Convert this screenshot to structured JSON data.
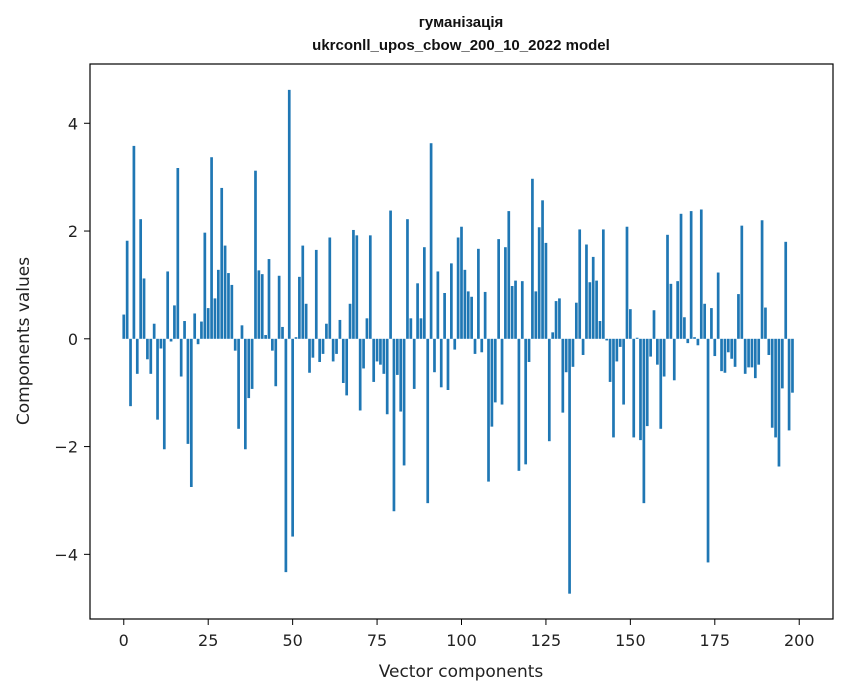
{
  "chart_data": {
    "type": "bar",
    "title": "гуманізація",
    "subtitle": "ukrconll_upos_cbow_200_10_2022 model",
    "xlabel": "Vector components",
    "ylabel": "Components values",
    "xlim": [
      -10,
      210
    ],
    "ylim": [
      -5.2,
      5.1
    ],
    "xticks": [
      0,
      25,
      50,
      75,
      100,
      125,
      150,
      175,
      200
    ],
    "yticks": [
      -4,
      -2,
      0,
      2,
      4
    ],
    "xtick_labels": [
      "0",
      "25",
      "50",
      "75",
      "100",
      "125",
      "150",
      "175",
      "200"
    ],
    "ytick_labels": [
      "−4",
      "−2",
      "0",
      "2",
      "4"
    ],
    "bar_color": "#1f77b4",
    "grid": false,
    "values": [
      0.45,
      1.82,
      -1.25,
      3.58,
      -0.65,
      2.22,
      1.12,
      -0.38,
      -0.65,
      0.28,
      -1.5,
      -0.18,
      -2.05,
      1.25,
      -0.05,
      0.62,
      3.17,
      -0.7,
      0.33,
      -1.95,
      -2.75,
      0.47,
      -0.1,
      0.32,
      1.97,
      0.57,
      3.37,
      0.75,
      1.28,
      2.8,
      1.73,
      1.22,
      1.0,
      -0.22,
      -1.67,
      0.25,
      -2.05,
      -1.1,
      -0.93,
      3.12,
      1.27,
      1.2,
      0.07,
      1.48,
      -0.22,
      -0.88,
      1.17,
      0.22,
      -4.33,
      4.62,
      -3.67,
      0.03,
      1.15,
      1.73,
      0.65,
      -0.63,
      -0.35,
      1.65,
      -0.43,
      -0.28,
      0.28,
      1.88,
      -0.42,
      -0.28,
      0.35,
      -0.82,
      -1.05,
      0.65,
      2.02,
      1.92,
      -1.33,
      -0.55,
      0.38,
      1.92,
      -0.8,
      -0.42,
      -0.48,
      -0.65,
      -1.4,
      2.38,
      -3.2,
      -0.67,
      -1.35,
      -2.35,
      2.22,
      0.38,
      -0.93,
      1.03,
      0.38,
      1.7,
      -3.05,
      3.63,
      -0.62,
      1.25,
      -0.9,
      0.85,
      -0.95,
      1.4,
      -0.2,
      1.88,
      2.08,
      1.28,
      0.88,
      0.78,
      -0.28,
      1.67,
      -0.25,
      0.87,
      -2.65,
      -1.63,
      -1.18,
      1.85,
      -1.22,
      1.7,
      2.37,
      0.98,
      1.08,
      -2.45,
      1.07,
      -2.33,
      -0.43,
      2.97,
      0.88,
      2.07,
      2.57,
      1.78,
      -1.9,
      0.12,
      0.7,
      0.75,
      -1.37,
      -0.62,
      -4.73,
      -0.52,
      0.67,
      2.03,
      -0.3,
      1.75,
      1.05,
      1.52,
      1.08,
      0.33,
      2.03,
      -0.03,
      -0.8,
      -1.83,
      -0.42,
      -0.15,
      -1.22,
      2.08,
      0.55,
      -1.83,
      0.02,
      -1.88,
      -3.05,
      -1.62,
      -0.33,
      0.53,
      -0.48,
      -1.67,
      -0.7,
      1.93,
      1.02,
      -0.77,
      1.07,
      2.32,
      0.4,
      -0.08,
      2.37,
      0.03,
      -0.12,
      2.4,
      0.65,
      -4.15,
      0.57,
      -0.32,
      1.23,
      -0.6,
      -0.63,
      -0.25,
      -0.37,
      -0.52,
      0.83,
      2.1,
      -0.65,
      -0.53,
      -0.53,
      -0.73,
      -0.48,
      2.2,
      0.58,
      -0.3,
      -1.65,
      -1.83,
      -2.37,
      -0.92,
      1.8,
      -1.7,
      -1.0
    ]
  }
}
